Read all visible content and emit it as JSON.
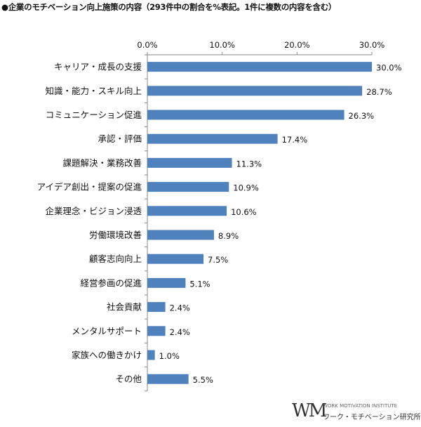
{
  "title": "●企業のモチベーション向上施策の内容（293件中の割合を%表記。1件に複数の内容を含む）",
  "colors": {
    "bar": "#4f81bd",
    "axis": "#888888",
    "text": "#111111"
  },
  "logo": {
    "mark": "WM",
    "name_en": "WORK MOTIVATION INSTITUTE",
    "name_jp": "ワーク・モチベーション研究所"
  },
  "chart_data": {
    "type": "bar",
    "orientation": "horizontal",
    "title": "●企業のモチベーション向上施策の内容（293件中の割合を%表記。1件に複数の内容を含む）",
    "xlim": [
      0,
      30
    ],
    "ticks": [
      0,
      10,
      20,
      30
    ],
    "tick_labels": [
      "0.0%",
      "10.0%",
      "20.0%",
      "30.0%"
    ],
    "tick_position": "top",
    "grid": false,
    "categories": [
      "キャリア・成長の支援",
      "知識・能力・スキル向上",
      "コミュニケーション促進",
      "承認・評価",
      "課題解決・業務改善",
      "アイデア創出・提案の促進",
      "企業理念・ビジョン浸透",
      "労働環境改善",
      "顧客志向向上",
      "経営参画の促進",
      "社会貢献",
      "メンタルサポート",
      "家族への働きかけ",
      "その他"
    ],
    "values": [
      30.0,
      28.7,
      26.3,
      17.4,
      11.3,
      10.9,
      10.6,
      8.9,
      7.5,
      5.1,
      2.4,
      2.4,
      1.0,
      5.5
    ],
    "value_labels": [
      "30.0%",
      "28.7%",
      "26.3%",
      "17.4%",
      "11.3%",
      "10.9%",
      "10.6%",
      "8.9%",
      "7.5%",
      "5.1%",
      "2.4%",
      "2.4%",
      "1.0%",
      "5.5%"
    ]
  }
}
